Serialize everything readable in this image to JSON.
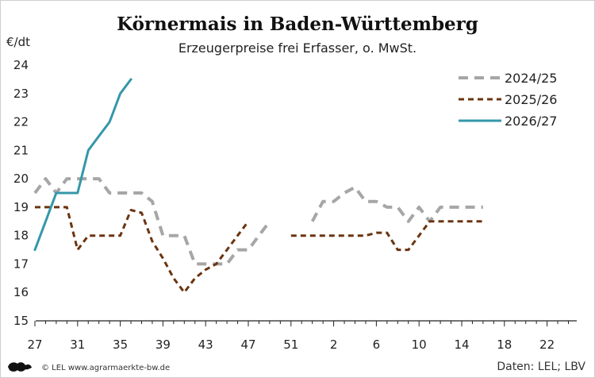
{
  "chart_data": {
    "type": "line",
    "title": "Körnermais in Baden-Württemberg",
    "subtitle": "Erzeugerpreise frei Erfasser, o. MwSt.",
    "ylabel": "€/dt",
    "ylim": [
      15,
      24
    ],
    "yticks": [
      "15",
      "16",
      "17",
      "18",
      "19",
      "20",
      "21",
      "22",
      "23",
      "24"
    ],
    "xticks": [
      "27",
      "31",
      "35",
      "39",
      "43",
      "47",
      "51",
      "2",
      "6",
      "10",
      "14",
      "18",
      "22"
    ],
    "grid": false,
    "legend_position": "top-right",
    "series": [
      {
        "name": "2024/25",
        "color": "#a6a6a6",
        "style": "dashed",
        "segments": [
          [
            [
              0,
              19.5
            ],
            [
              1,
              20.0
            ],
            [
              2,
              19.5
            ],
            [
              3,
              20.0
            ],
            [
              4,
              20.0
            ],
            [
              5,
              20.0
            ],
            [
              6,
              20.0
            ],
            [
              7,
              19.5
            ],
            [
              8,
              19.5
            ],
            [
              9,
              19.5
            ],
            [
              10,
              19.5
            ],
            [
              11,
              19.2
            ],
            [
              12,
              18.0
            ],
            [
              13,
              18.0
            ],
            [
              14,
              18.0
            ],
            [
              15,
              17.0
            ],
            [
              16,
              17.0
            ],
            [
              17,
              17.0
            ],
            [
              18,
              17.0
            ],
            [
              19,
              17.5
            ],
            [
              20,
              17.5
            ],
            [
              21,
              18.0
            ],
            [
              22,
              18.5
            ]
          ],
          [
            [
              26,
              18.5
            ],
            [
              27,
              19.2
            ],
            [
              28,
              19.2
            ],
            [
              29,
              19.5
            ],
            [
              30,
              19.7
            ],
            [
              31,
              19.2
            ],
            [
              32,
              19.2
            ],
            [
              33,
              19.0
            ],
            [
              34,
              19.0
            ],
            [
              35,
              18.5
            ],
            [
              36,
              19.0
            ],
            [
              37,
              18.5
            ],
            [
              38,
              19.0
            ],
            [
              39,
              19.0
            ],
            [
              40,
              19.0
            ],
            [
              41,
              19.0
            ],
            [
              42,
              19.0
            ]
          ]
        ]
      },
      {
        "name": "2025/26",
        "color": "#6b3410",
        "style": "dashed",
        "segments": [
          [
            [
              0,
              19.0
            ],
            [
              1,
              19.0
            ],
            [
              2,
              19.0
            ],
            [
              3,
              19.0
            ],
            [
              4,
              17.5
            ],
            [
              5,
              18.0
            ],
            [
              6,
              18.0
            ],
            [
              7,
              18.0
            ],
            [
              8,
              18.0
            ],
            [
              9,
              18.9
            ],
            [
              10,
              18.8
            ],
            [
              11,
              17.8
            ],
            [
              12,
              17.2
            ],
            [
              13,
              16.5
            ],
            [
              14,
              16.0
            ],
            [
              15,
              16.5
            ],
            [
              16,
              16.8
            ],
            [
              17,
              17.0
            ],
            [
              18,
              17.5
            ],
            [
              19,
              18.0
            ],
            [
              20,
              18.5
            ]
          ],
          [
            [
              24,
              18.0
            ],
            [
              25,
              18.0
            ],
            [
              26,
              18.0
            ],
            [
              27,
              18.0
            ],
            [
              28,
              18.0
            ],
            [
              29,
              18.0
            ],
            [
              30,
              18.0
            ],
            [
              31,
              18.0
            ],
            [
              32,
              18.1
            ],
            [
              33,
              18.1
            ],
            [
              34,
              17.5
            ],
            [
              35,
              17.5
            ],
            [
              36,
              18.0
            ],
            [
              37,
              18.5
            ],
            [
              38,
              18.5
            ],
            [
              39,
              18.5
            ],
            [
              40,
              18.5
            ],
            [
              41,
              18.5
            ],
            [
              42,
              18.5
            ]
          ]
        ]
      },
      {
        "name": "2026/27",
        "color": "#3597aa",
        "style": "solid",
        "segments": [
          [
            [
              0,
              17.5
            ],
            [
              1,
              18.5
            ],
            [
              2,
              19.5
            ],
            [
              3,
              19.5
            ],
            [
              4,
              19.5
            ],
            [
              5,
              21.0
            ],
            [
              6,
              21.5
            ],
            [
              7,
              22.0
            ],
            [
              8,
              23.0
            ],
            [
              9,
              23.5
            ]
          ]
        ]
      }
    ]
  },
  "footer": {
    "left": "© LEL www.agrarmaerkte-bw.de",
    "right": "Daten: LEL; LBV"
  },
  "logo_icon": "lion-crest-icon"
}
